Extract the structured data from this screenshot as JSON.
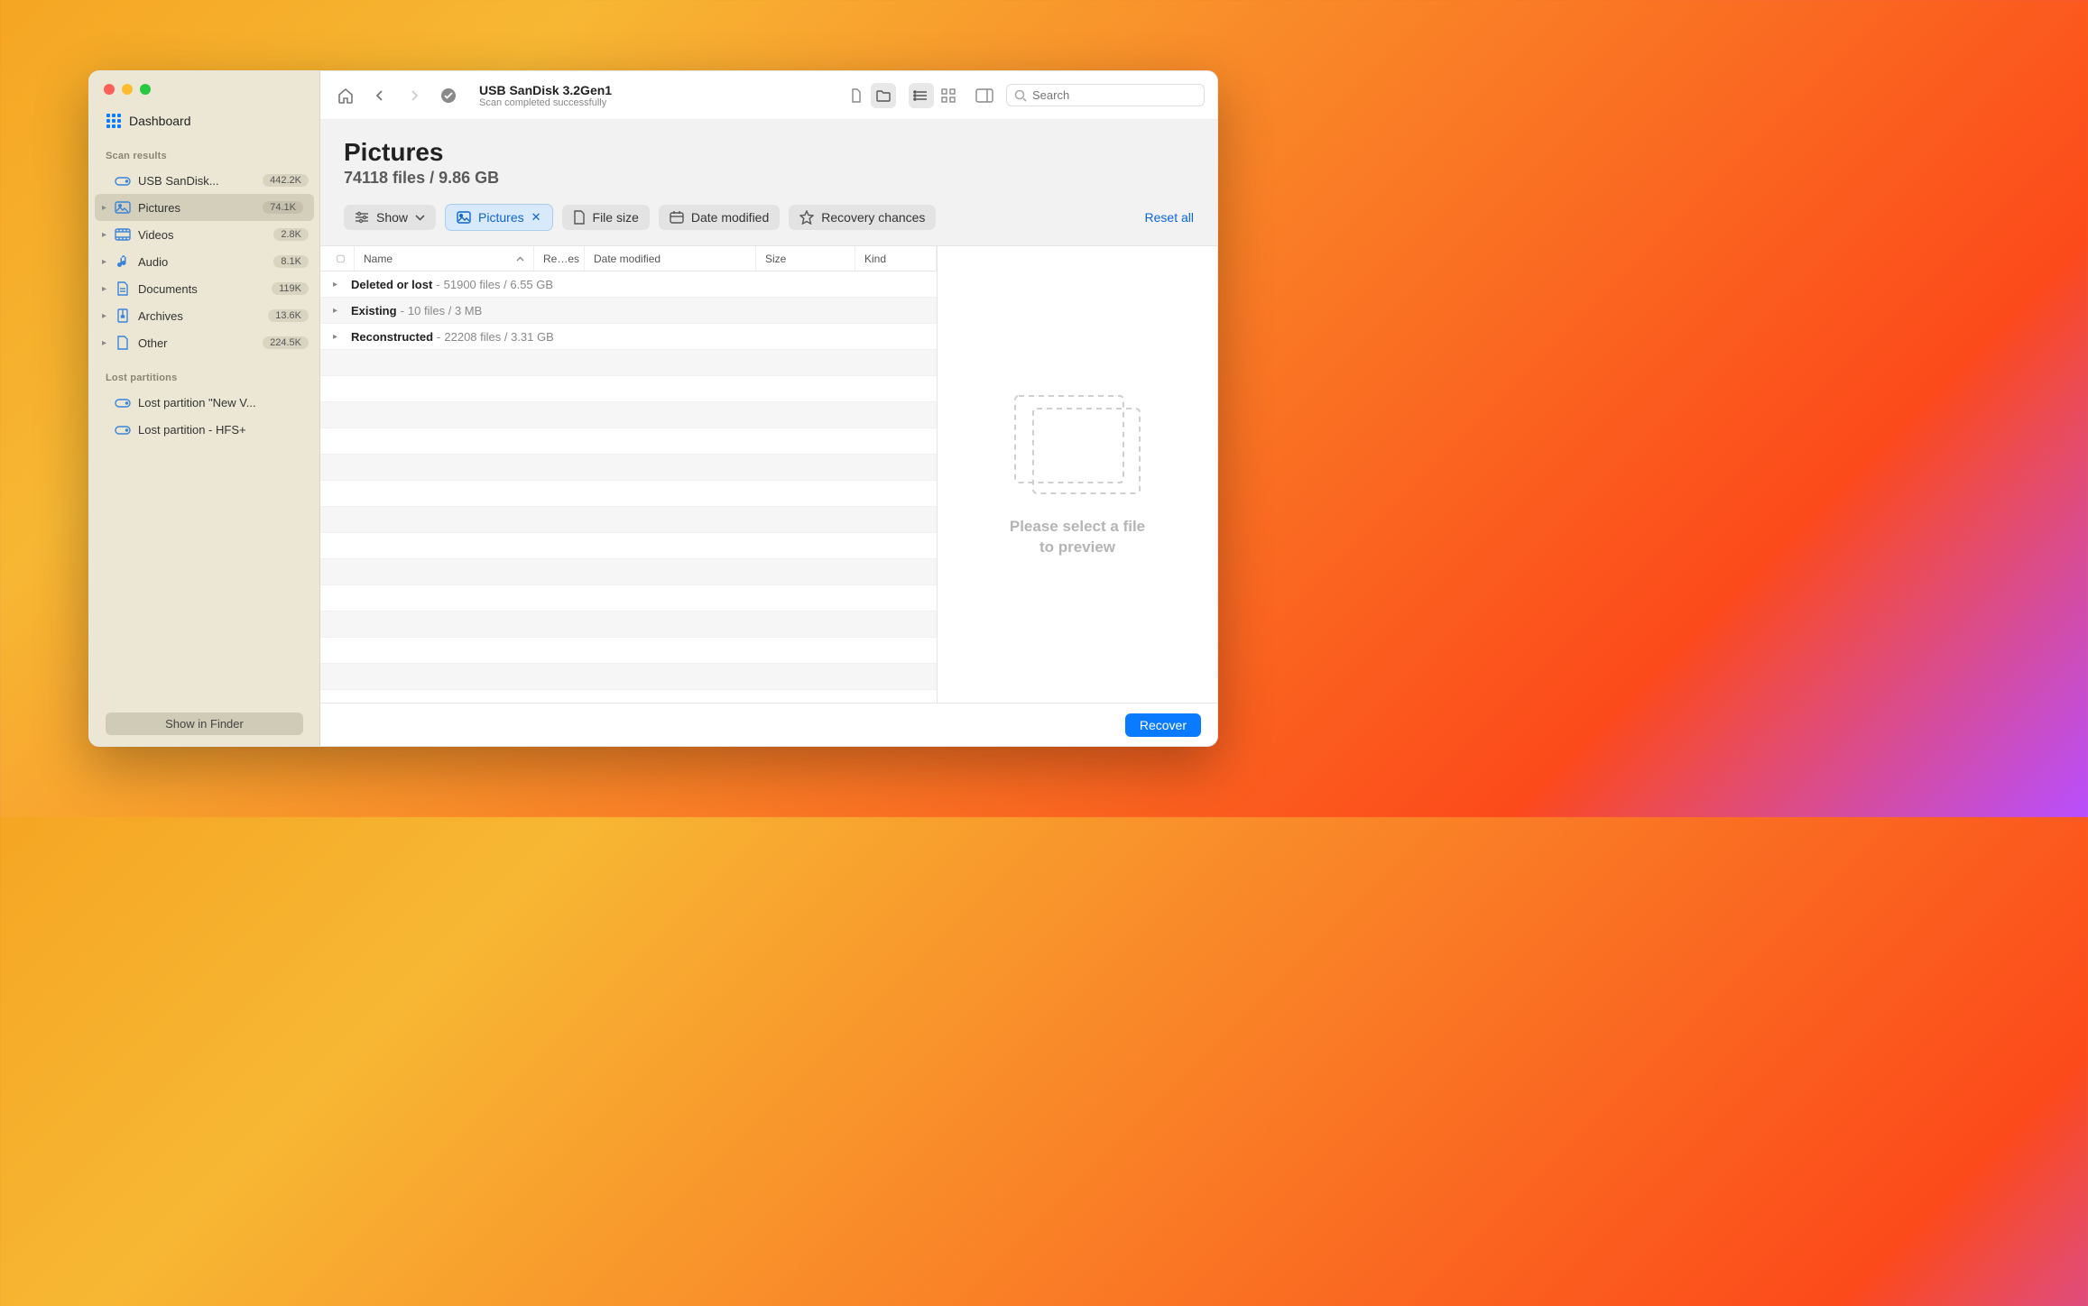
{
  "window": {
    "title": "USB  SanDisk 3.2Gen1",
    "subtitle": "Scan completed successfully"
  },
  "colors": {
    "accent": "#0a7bff",
    "sidebar_bg": "#ece7d4",
    "sidebar_active": "#d4cfba",
    "badge_bg": "#d9d4c0",
    "filter_active_bg": "#d7e9fb",
    "filter_active_fg": "#1064c8",
    "link": "#0a66e0"
  },
  "sidebar": {
    "dashboard_label": "Dashboard",
    "scan_results_header": "Scan results",
    "items": [
      {
        "icon": "drive",
        "label": "USB  SanDisk...",
        "badge": "442.2K",
        "has_children": false
      },
      {
        "icon": "pictures",
        "label": "Pictures",
        "badge": "74.1K",
        "has_children": true,
        "active": true
      },
      {
        "icon": "videos",
        "label": "Videos",
        "badge": "2.8K",
        "has_children": true
      },
      {
        "icon": "audio",
        "label": "Audio",
        "badge": "8.1K",
        "has_children": true
      },
      {
        "icon": "documents",
        "label": "Documents",
        "badge": "119K",
        "has_children": true
      },
      {
        "icon": "archives",
        "label": "Archives",
        "badge": "13.6K",
        "has_children": true
      },
      {
        "icon": "other",
        "label": "Other",
        "badge": "224.5K",
        "has_children": true
      }
    ],
    "lost_header": "Lost partitions",
    "lost_items": [
      {
        "label": "Lost partition \"New V..."
      },
      {
        "label": "Lost partition - HFS+"
      }
    ],
    "show_in_finder": "Show in Finder"
  },
  "search": {
    "placeholder": "Search"
  },
  "header": {
    "title": "Pictures",
    "subtitle": "74118 files / 9.86 GB"
  },
  "filters": {
    "show": "Show",
    "pictures": "Pictures",
    "file_size": "File size",
    "date_modified": "Date modified",
    "recovery_chances": "Recovery chances",
    "reset_all": "Reset all"
  },
  "columns": {
    "name": "Name",
    "reces": "Re…es",
    "date_modified": "Date modified",
    "size": "Size",
    "kind": "Kind"
  },
  "rows": [
    {
      "name": "Deleted or lost",
      "meta": "51900 files / 6.55 GB"
    },
    {
      "name": "Existing",
      "meta": "10 files / 3 MB"
    },
    {
      "name": "Reconstructed",
      "meta": "22208 files / 3.31 GB"
    }
  ],
  "preview": {
    "line1": "Please select a file",
    "line2": "to preview"
  },
  "footer": {
    "recover": "Recover"
  }
}
